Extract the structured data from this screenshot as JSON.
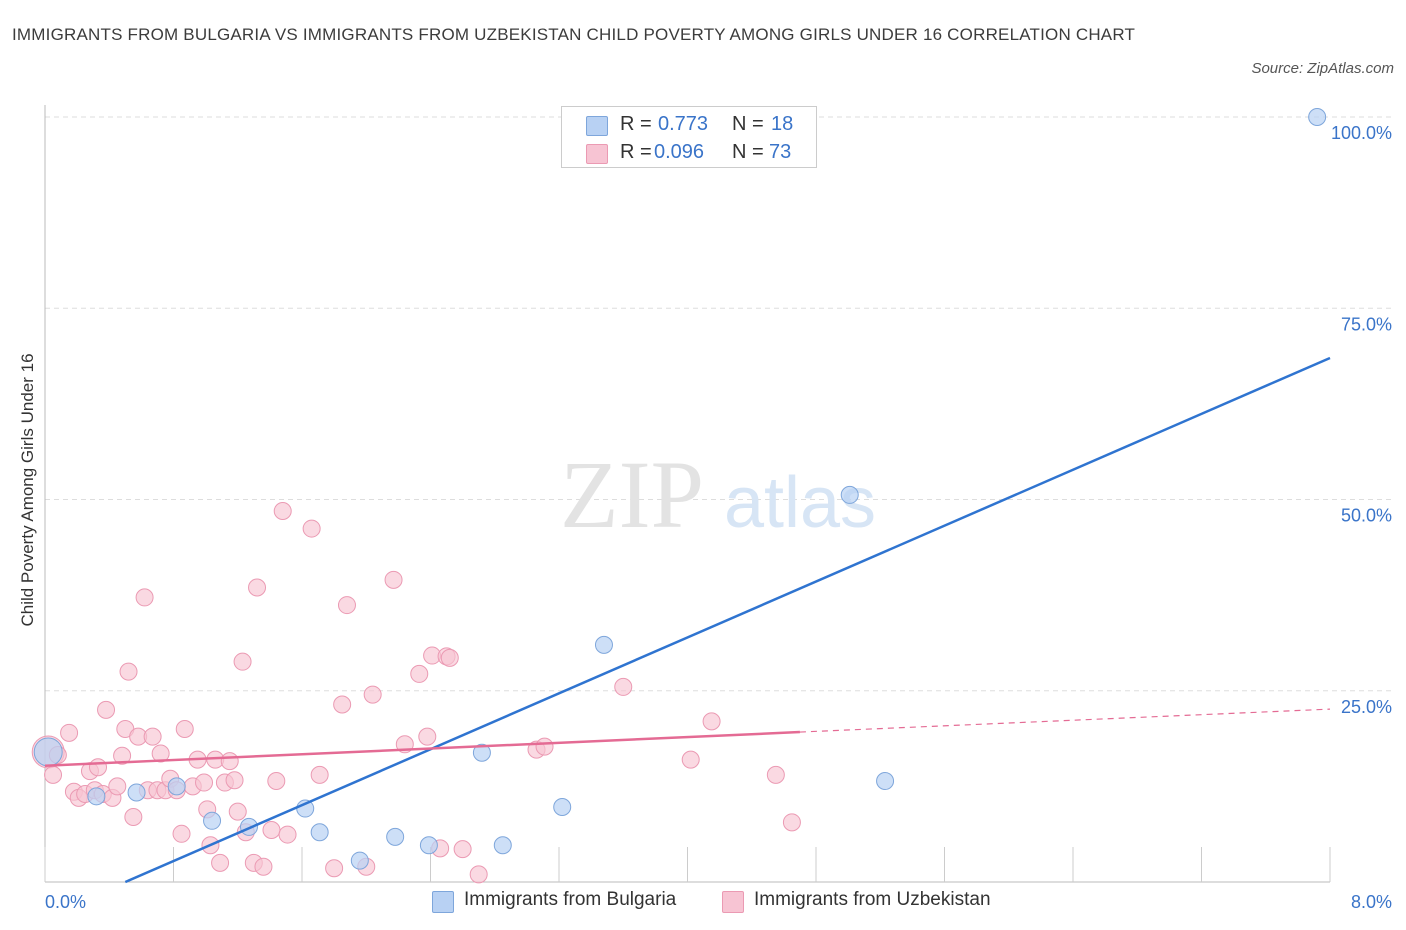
{
  "title": "IMMIGRANTS FROM BULGARIA VS IMMIGRANTS FROM UZBEKISTAN CHILD POVERTY AMONG GIRLS UNDER 16 CORRELATION CHART",
  "source": "Source: ZipAtlas.com",
  "watermark": {
    "zip": "ZIP",
    "atlas": "atlas"
  },
  "legend_top": {
    "rows": [
      {
        "r_label": "R =",
        "r_value": "0.773",
        "n_label": "N =",
        "n_value": "18"
      },
      {
        "r_label": "R =",
        "r_value": "0.096",
        "n_label": "N =",
        "n_value": "73"
      }
    ]
  },
  "legend_bottom": [
    "Immigrants from Bulgaria",
    "Immigrants from Uzbekistan"
  ],
  "colors": {
    "bulgaria_fill": "#b8d1f3",
    "bulgaria_stroke": "#7ea6db",
    "bulgaria_line": "#2f74d0",
    "uzbekistan_fill": "#f7c4d3",
    "uzbekistan_stroke": "#eb9ab3",
    "uzbekistan_line": "#e46b94",
    "tick_label": "#3a74c9",
    "grid": "#dddddd"
  },
  "chart_data": {
    "type": "scatter",
    "title": "IMMIGRANTS FROM BULGARIA VS IMMIGRANTS FROM UZBEKISTAN CHILD POVERTY AMONG GIRLS UNDER 16 CORRELATION CHART",
    "xlabel": "",
    "ylabel": "Child Poverty Among Girls Under 16",
    "xlim": [
      0,
      8
    ],
    "ylim": [
      0,
      100
    ],
    "x_tick_labels": [
      "0.0%",
      "8.0%"
    ],
    "y_ticks": [
      25,
      50,
      75,
      100
    ],
    "y_tick_labels": [
      "25.0%",
      "50.0%",
      "75.0%",
      "100.0%"
    ],
    "grid": true,
    "legend_position": "top-center",
    "series": [
      {
        "name": "Immigrants from Bulgaria",
        "r": 0.773,
        "n": 18,
        "points": [
          [
            0.02,
            17.0
          ],
          [
            0.32,
            11.2
          ],
          [
            0.57,
            11.7
          ],
          [
            0.82,
            12.5
          ],
          [
            1.04,
            8.0
          ],
          [
            1.27,
            7.2
          ],
          [
            1.62,
            9.6
          ],
          [
            1.71,
            6.5
          ],
          [
            1.96,
            2.8
          ],
          [
            2.18,
            5.9
          ],
          [
            2.39,
            4.8
          ],
          [
            2.72,
            16.9
          ],
          [
            2.85,
            4.8
          ],
          [
            3.22,
            9.8
          ],
          [
            3.48,
            31.0
          ],
          [
            5.01,
            50.6
          ],
          [
            5.23,
            13.2
          ],
          [
            7.92,
            100.0
          ]
        ],
        "trend": {
          "x": [
            0.5,
            8.0
          ],
          "y": [
            0.0,
            68.5
          ],
          "dashed_x": null
        }
      },
      {
        "name": "Immigrants from Uzbekistan",
        "r": 0.096,
        "n": 73,
        "points": [
          [
            0.02,
            17.0
          ],
          [
            0.05,
            14.0
          ],
          [
            0.08,
            16.6
          ],
          [
            0.15,
            19.5
          ],
          [
            0.18,
            11.8
          ],
          [
            0.21,
            11.0
          ],
          [
            0.25,
            11.5
          ],
          [
            0.28,
            14.5
          ],
          [
            0.31,
            12.0
          ],
          [
            0.33,
            15.0
          ],
          [
            0.36,
            11.5
          ],
          [
            0.38,
            22.5
          ],
          [
            0.42,
            11.0
          ],
          [
            0.45,
            12.5
          ],
          [
            0.48,
            16.5
          ],
          [
            0.5,
            20.0
          ],
          [
            0.52,
            27.5
          ],
          [
            0.55,
            8.5
          ],
          [
            0.58,
            19.0
          ],
          [
            0.62,
            37.2
          ],
          [
            0.64,
            12.0
          ],
          [
            0.67,
            19.0
          ],
          [
            0.7,
            12.0
          ],
          [
            0.72,
            16.8
          ],
          [
            0.75,
            12.0
          ],
          [
            0.78,
            13.5
          ],
          [
            0.82,
            12.0
          ],
          [
            0.85,
            6.3
          ],
          [
            0.87,
            20.0
          ],
          [
            0.92,
            12.5
          ],
          [
            0.95,
            16.0
          ],
          [
            0.99,
            13.0
          ],
          [
            1.01,
            9.5
          ],
          [
            1.03,
            4.8
          ],
          [
            1.06,
            16.0
          ],
          [
            1.09,
            2.5
          ],
          [
            1.12,
            13.0
          ],
          [
            1.15,
            15.8
          ],
          [
            1.18,
            13.3
          ],
          [
            1.2,
            9.2
          ],
          [
            1.23,
            28.8
          ],
          [
            1.25,
            6.5
          ],
          [
            1.3,
            2.5
          ],
          [
            1.32,
            38.5
          ],
          [
            1.36,
            2.0
          ],
          [
            1.41,
            6.8
          ],
          [
            1.44,
            13.2
          ],
          [
            1.48,
            48.5
          ],
          [
            1.51,
            6.2
          ],
          [
            1.66,
            46.2
          ],
          [
            1.71,
            14.0
          ],
          [
            1.8,
            1.8
          ],
          [
            1.85,
            23.2
          ],
          [
            1.88,
            36.2
          ],
          [
            2.0,
            2.0
          ],
          [
            2.04,
            24.5
          ],
          [
            2.17,
            39.5
          ],
          [
            2.24,
            18.0
          ],
          [
            2.33,
            27.2
          ],
          [
            2.38,
            19.0
          ],
          [
            2.41,
            29.6
          ],
          [
            2.46,
            4.4
          ],
          [
            2.5,
            29.5
          ],
          [
            2.52,
            29.3
          ],
          [
            2.6,
            4.3
          ],
          [
            2.7,
            1.0
          ],
          [
            3.06,
            17.3
          ],
          [
            3.11,
            17.7
          ],
          [
            3.6,
            25.5
          ],
          [
            4.02,
            16.0
          ],
          [
            4.15,
            21.0
          ],
          [
            4.55,
            14.0
          ],
          [
            4.65,
            7.8
          ]
        ],
        "trend": {
          "x": [
            0.0,
            4.7
          ],
          "y": [
            15.2,
            19.6
          ],
          "dashed_to": [
            8.0,
            22.6
          ]
        }
      }
    ]
  }
}
